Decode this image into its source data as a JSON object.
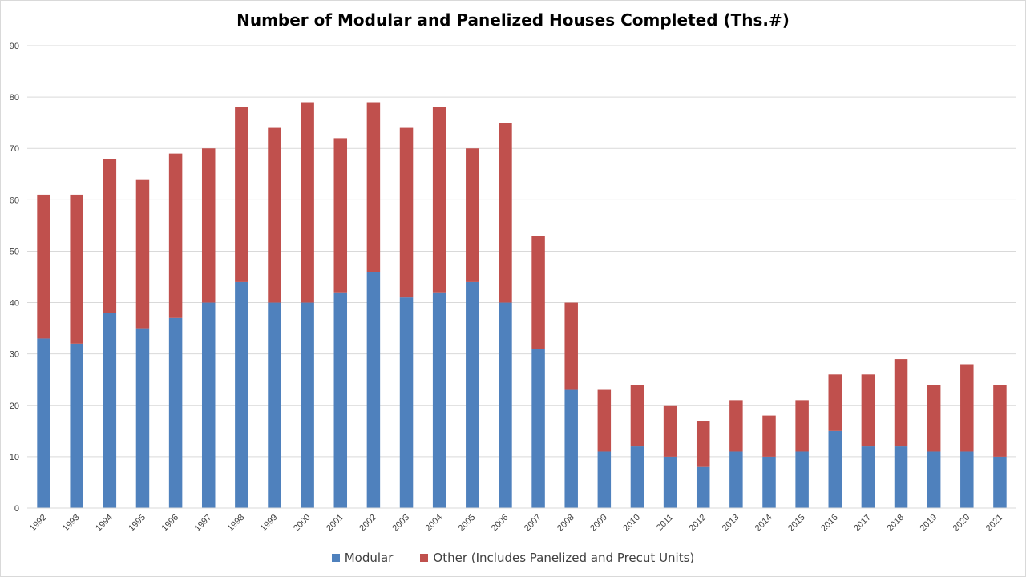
{
  "chart_data": {
    "type": "bar",
    "stacked": true,
    "title": "Number of Modular and Panelized Houses Completed (Ths.#)",
    "xlabel": "",
    "ylabel": "",
    "ylim": [
      0,
      90
    ],
    "yticks": [
      0,
      10,
      20,
      30,
      40,
      50,
      60,
      70,
      80,
      90
    ],
    "grid": true,
    "legend_position": "bottom",
    "categories": [
      "1992",
      "1993",
      "1994",
      "1995",
      "1996",
      "1997",
      "1998",
      "1999",
      "2000",
      "2001",
      "2002",
      "2003",
      "2004",
      "2005",
      "2006",
      "2007",
      "2008",
      "2009",
      "2010",
      "2011",
      "2012",
      "2013",
      "2014",
      "2015",
      "2016",
      "2017",
      "2018",
      "2019",
      "2020",
      "2021"
    ],
    "series": [
      {
        "name": "Modular",
        "color": "#4f81bd",
        "values": [
          33,
          32,
          38,
          35,
          37,
          40,
          44,
          40,
          40,
          42,
          46,
          41,
          42,
          44,
          40,
          31,
          23,
          11,
          12,
          10,
          8,
          11,
          10,
          11,
          15,
          12,
          12,
          11,
          11,
          10
        ]
      },
      {
        "name": "Other (Includes Panelized and Precut Units)",
        "color": "#c0504d",
        "values": [
          28,
          29,
          30,
          29,
          32,
          30,
          34,
          34,
          39,
          30,
          33,
          33,
          36,
          26,
          35,
          22,
          17,
          12,
          12,
          10,
          9,
          10,
          8,
          10,
          11,
          14,
          17,
          13,
          17,
          14
        ]
      }
    ]
  }
}
